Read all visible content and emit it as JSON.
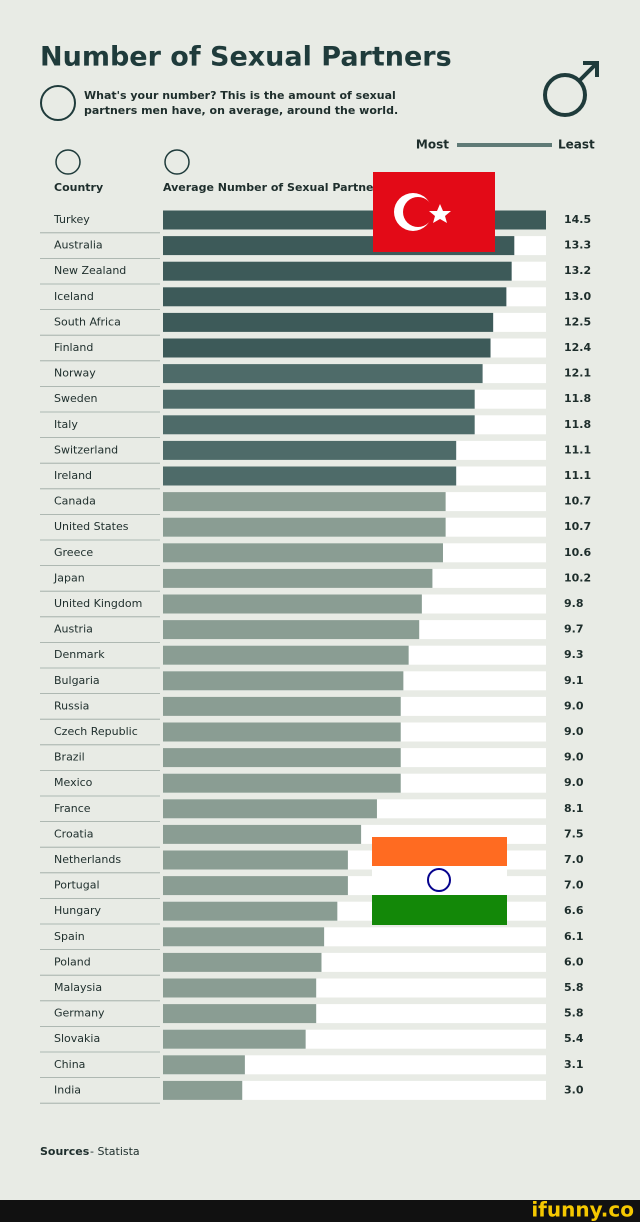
{
  "chart_data": {
    "type": "hbar",
    "title": "Number of Sexual Partners",
    "subtitle": "What's your number? This is the amount of sexual partners men have, on average, around the world.",
    "legend_most": "Most",
    "legend_least": "Least",
    "category_header": "Country",
    "value_header": "Average Number of Sexual Partners",
    "source_label": "Sources",
    "source_text": "- Statista",
    "watermark": "ifunny.co",
    "categories": [
      "Turkey",
      "Australia",
      "New Zealand",
      "Iceland",
      "South Africa",
      "Finland",
      "Norway",
      "Sweden",
      "Italy",
      "Switzerland",
      "Ireland",
      "Canada",
      "United States",
      "Greece",
      "Japan",
      "United Kingdom",
      "Austria",
      "Denmark",
      "Bulgaria",
      "Russia",
      "Czech Republic",
      "Brazil",
      "Mexico",
      "France",
      "Croatia",
      "Netherlands",
      "Portugal",
      "Hungary",
      "Spain",
      "Poland",
      "Malaysia",
      "Germany",
      "Slovakia",
      "China",
      "India"
    ],
    "values": [
      14.5,
      13.3,
      13.2,
      13,
      12.5,
      12.4,
      12.1,
      11.8,
      11.8,
      11.1,
      11.1,
      10.7,
      10.7,
      10.6,
      10.2,
      9.8,
      9.7,
      9.3,
      9.1,
      9,
      9,
      9,
      9,
      8.1,
      7.5,
      7,
      7,
      6.6,
      6.1,
      6,
      5.8,
      5.8,
      5.4,
      3.1,
      3
    ],
    "value_labels": [
      "14.5",
      "13.3",
      "13.2",
      "13.0",
      "12.5",
      "12.4",
      "12.1",
      "11.8",
      "11.8",
      "11.1",
      "11.1",
      "10.7",
      "10.7",
      "10.6",
      "10.2",
      "9.8",
      "9.7",
      "9.3",
      "9.1",
      "9.0",
      "9.0",
      "9.0",
      "9.0",
      "8.1",
      "7.5",
      "7.0",
      "7.0",
      "6.6",
      "6.1",
      "6.0",
      "5.8",
      "5.8",
      "5.4",
      "3.1",
      "3.0"
    ],
    "colors": [
      "#3d5a59",
      "#3d5a59",
      "#3d5a59",
      "#3d5a59",
      "#3d5a59",
      "#3d5a59",
      "#4e6b69",
      "#4e6b69",
      "#4e6b69",
      "#4e6b69",
      "#4e6b69",
      "#8a9d93",
      "#8a9d93",
      "#8a9d93",
      "#8a9d93",
      "#8a9d93",
      "#8a9d93",
      "#8a9d93",
      "#8a9d93",
      "#8a9d93",
      "#8a9d93",
      "#8a9d93",
      "#8a9d93",
      "#8a9d93",
      "#8a9d93",
      "#8a9d93",
      "#8a9d93",
      "#8a9d93",
      "#8a9d93",
      "#8a9d93",
      "#8a9d93",
      "#8a9d93",
      "#8a9d93",
      "#8a9d93",
      "#8a9d93"
    ],
    "xlim": [
      0,
      14.5
    ]
  }
}
